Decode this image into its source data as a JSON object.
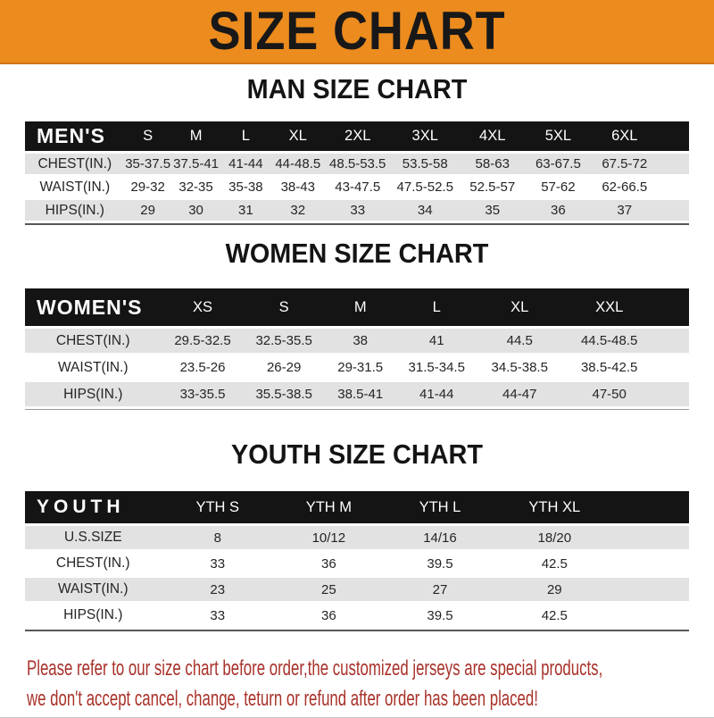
{
  "colors": {
    "accent": "#ec8b1e",
    "bar": "#141414",
    "stripe": "#e2e2e2",
    "footer_red": "#a8322a",
    "text": "#222222"
  },
  "banner": {
    "title": "SIZE CHART"
  },
  "sections": [
    {
      "key": "men",
      "title": "MAN SIZE CHART",
      "header_label": "MEN'S",
      "columns": [
        "S",
        "M",
        "L",
        "XL",
        "2XL",
        "3XL",
        "4XL",
        "5XL",
        "6XL"
      ],
      "rows": [
        {
          "label": "CHEST(IN.)",
          "values": [
            "35-37.5",
            "37.5-41",
            "41-44",
            "44-48.5",
            "48.5-53.5",
            "53.5-58",
            "58-63",
            "63-67.5",
            "67.5-72"
          ]
        },
        {
          "label": "WAIST(IN.)",
          "values": [
            "29-32",
            "32-35",
            "35-38",
            "38-43",
            "43-47.5",
            "47.5-52.5",
            "52.5-57",
            "57-62",
            "62-66.5"
          ]
        },
        {
          "label": "HIPS(IN.)",
          "values": [
            "29",
            "30",
            "31",
            "32",
            "33",
            "34",
            "35",
            "36",
            "37"
          ]
        }
      ]
    },
    {
      "key": "women",
      "title": "WOMEN SIZE CHART",
      "header_label": "WOMEN'S",
      "columns": [
        "XS",
        "S",
        "M",
        "L",
        "XL",
        "XXL"
      ],
      "rows": [
        {
          "label": "CHEST(IN.)",
          "values": [
            "29.5-32.5",
            "32.5-35.5",
            "38",
            "41",
            "44.5",
            "44.5-48.5"
          ]
        },
        {
          "label": "WAIST(IN.)",
          "values": [
            "23.5-26",
            "26-29",
            "29-31.5",
            "31.5-34.5",
            "34.5-38.5",
            "38.5-42.5"
          ]
        },
        {
          "label": "HIPS(IN.)",
          "values": [
            "33-35.5",
            "35.5-38.5",
            "38.5-41",
            "41-44",
            "44-47",
            "47-50"
          ]
        }
      ]
    },
    {
      "key": "youth",
      "title": "YOUTH SIZE CHART",
      "header_label": "YOUTH",
      "columns": [
        "YTH S",
        "YTH M",
        "YTH L",
        "YTH XL"
      ],
      "rows": [
        {
          "label": "U.S.SIZE",
          "values": [
            "8",
            "10/12",
            "14/16",
            "18/20"
          ]
        },
        {
          "label": "CHEST(IN.)",
          "values": [
            "33",
            "36",
            "39.5",
            "42.5"
          ]
        },
        {
          "label": "WAIST(IN.)",
          "values": [
            "23",
            "25",
            "27",
            "29"
          ]
        },
        {
          "label": "HIPS(IN.)",
          "values": [
            "33",
            "36",
            "39.5",
            "42.5"
          ]
        }
      ]
    }
  ],
  "footer": {
    "line1": "Please refer to our size chart before order,the customized jerseys are special products,",
    "line2": "we don't accept cancel, change, teturn or refund after order has been placed!"
  }
}
